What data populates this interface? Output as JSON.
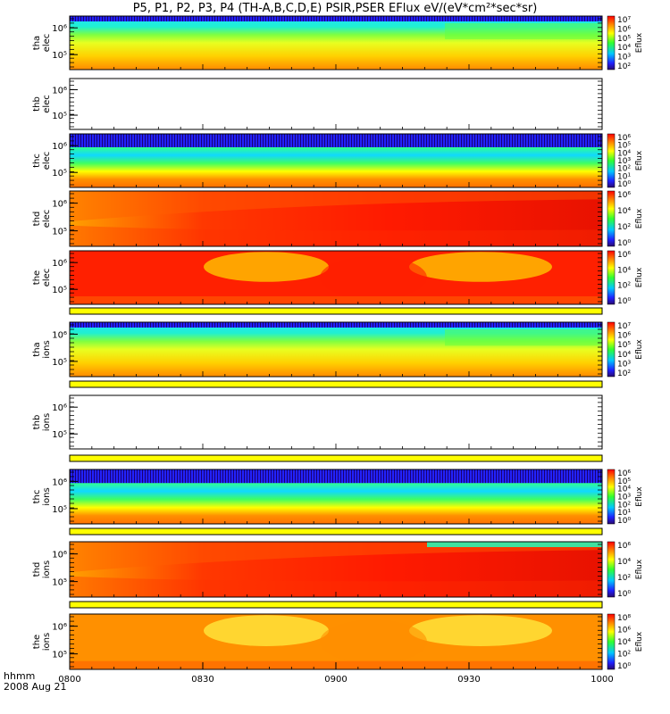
{
  "title": "P5, P1, P2, P3, P4 (TH-A,B,C,D,E) PSIR,PSER EFlux eV/(eV*cm²*sec*sr)",
  "footer": {
    "line1": "hhmm",
    "line2": "2008 Aug 21"
  },
  "chart_data": {
    "type": "heatmap",
    "x_ticks": [
      "0800",
      "0830",
      "0900",
      "0930",
      "1000"
    ],
    "x_range": [
      "0800",
      "1000"
    ],
    "colorbar_label": "Eflux",
    "panels": [
      {
        "id": "tha-elec",
        "probe": "tha",
        "species": "elec",
        "y_ticks": [
          "10⁶",
          "10⁵"
        ],
        "has_data": true,
        "pattern": "cyan-top",
        "colorbar": [
          "10⁷",
          "10⁶",
          "10⁵",
          "10⁴",
          "10³",
          "10²"
        ]
      },
      {
        "id": "thb-elec",
        "probe": "thb",
        "species": "elec",
        "y_ticks": [
          "10⁶",
          "10⁵"
        ],
        "has_data": false
      },
      {
        "id": "thc-elec",
        "probe": "thc",
        "species": "elec",
        "y_ticks": [
          "10⁶",
          "10⁵"
        ],
        "has_data": true,
        "pattern": "cyan-band",
        "colorbar": [
          "10⁶",
          "10⁵",
          "10⁴",
          "10³",
          "10²",
          "10¹",
          "10⁰"
        ]
      },
      {
        "id": "thd-elec",
        "probe": "thd",
        "species": "elec",
        "y_ticks": [
          "10⁶",
          "10⁵"
        ],
        "has_data": true,
        "pattern": "red-wedge",
        "colorbar": [
          "10⁶",
          "10⁴",
          "10²",
          "10⁰"
        ]
      },
      {
        "id": "the-elec",
        "probe": "the",
        "species": "elec",
        "y_ticks": [
          "10⁶",
          "10⁵"
        ],
        "has_data": true,
        "pattern": "red-arcs",
        "colorbar": [
          "10⁶",
          "10⁴",
          "10²",
          "10⁰"
        ]
      },
      {
        "id": "tha-ions",
        "probe": "tha",
        "species": "ions",
        "y_ticks": [
          "10⁶",
          "10⁵"
        ],
        "has_data": true,
        "pattern": "cyan-top",
        "colorbar": [
          "10⁷",
          "10⁶",
          "10⁵",
          "10⁴",
          "10³",
          "10²"
        ]
      },
      {
        "id": "thb-ions",
        "probe": "thb",
        "species": "ions",
        "y_ticks": [
          "10⁶",
          "10⁵"
        ],
        "has_data": false
      },
      {
        "id": "thc-ions",
        "probe": "thc",
        "species": "ions",
        "y_ticks": [
          "10⁶",
          "10⁵"
        ],
        "has_data": true,
        "pattern": "cyan-band",
        "colorbar": [
          "10⁶",
          "10⁵",
          "10⁴",
          "10³",
          "10²",
          "10¹",
          "10⁰"
        ]
      },
      {
        "id": "thd-ions",
        "probe": "thd",
        "species": "ions",
        "y_ticks": [
          "10⁶",
          "10⁵"
        ],
        "has_data": true,
        "pattern": "red-wedge",
        "colorbar": [
          "10⁶",
          "10⁴",
          "10²",
          "10⁰"
        ]
      },
      {
        "id": "the-ions",
        "probe": "the",
        "species": "ions",
        "y_ticks": [
          "10⁶",
          "10⁵"
        ],
        "has_data": true,
        "pattern": "yellow-arcs",
        "colorbar": [
          "10⁸",
          "10⁶",
          "10⁴",
          "10²",
          "10⁰"
        ]
      }
    ]
  }
}
